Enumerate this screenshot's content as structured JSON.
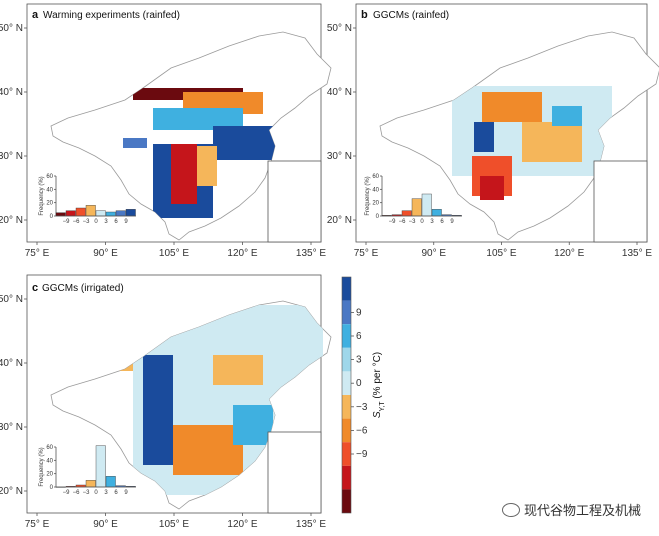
{
  "figure": {
    "panels": [
      {
        "letter": "a",
        "title": "Warming experiments (rainfed)"
      },
      {
        "letter": "b",
        "title": "GGCMs (rainfed)"
      },
      {
        "letter": "c",
        "title": "GGCMs (irrigated)"
      }
    ],
    "lon_labels": [
      "75° E",
      "90° E",
      "105° E",
      "120° E",
      "135° E"
    ],
    "lat_labels": [
      "50° N",
      "40° N",
      "30° N",
      "20° N"
    ],
    "colorbar": {
      "label": "S",
      "label_sub": "Y,T",
      "label_rest": " (% per °C)",
      "ticks": [
        "9",
        "6",
        "3",
        "0",
        "−3",
        "−6",
        "−9"
      ],
      "colors": [
        "#6b0a0f",
        "#c5151b",
        "#ef4f2a",
        "#f08a2a",
        "#f5b65a",
        "#cfeaf2",
        "#9fd7ea",
        "#3fb0e0",
        "#4a78c4",
        "#1a4b9c"
      ]
    },
    "watermark": "现代谷物工程及机械"
  },
  "chart_data": [
    {
      "type": "bar",
      "panel": "a",
      "title": "Warming experiments (rainfed)",
      "ylabel": "Frequency (%)",
      "ylim": [
        0,
        60
      ],
      "yticks": [
        "60",
        "40",
        "20",
        "0"
      ],
      "xticks": [
        "−9",
        "−6",
        "−3",
        "0",
        "3",
        "6",
        "9"
      ],
      "categories": [
        "< −9",
        "−9 to −6",
        "−6 to −3",
        "−3 to 0",
        "0 to 3",
        "3 to 6",
        "6 to 9",
        "> 9"
      ],
      "values": [
        5,
        8,
        12,
        16,
        8,
        6,
        8,
        10
      ],
      "colors": [
        "#6b0a0f",
        "#c5151b",
        "#ef4f2a",
        "#f5b65a",
        "#cfeaf2",
        "#3fb0e0",
        "#4a78c4",
        "#1a4b9c"
      ]
    },
    {
      "type": "bar",
      "panel": "b",
      "title": "GGCMs (rainfed)",
      "ylabel": "Frequency (%)",
      "ylim": [
        0,
        60
      ],
      "yticks": [
        "60",
        "40",
        "20",
        "0"
      ],
      "xticks": [
        "−9",
        "−6",
        "−3",
        "0",
        "3",
        "6",
        "9"
      ],
      "categories": [
        "< −9",
        "−9 to −6",
        "−6 to −3",
        "−3 to 0",
        "0 to 3",
        "3 to 6",
        "6 to 9",
        "> 9"
      ],
      "values": [
        1,
        2,
        8,
        26,
        33,
        10,
        2,
        1
      ],
      "colors": [
        "#6b0a0f",
        "#c5151b",
        "#ef4f2a",
        "#f5b65a",
        "#cfeaf2",
        "#3fb0e0",
        "#4a78c4",
        "#1a4b9c"
      ]
    },
    {
      "type": "bar",
      "panel": "c",
      "title": "GGCMs (irrigated)",
      "ylabel": "Frequency (%)",
      "ylim": [
        0,
        60
      ],
      "yticks": [
        "60",
        "40",
        "20",
        "0"
      ],
      "xticks": [
        "−9",
        "−6",
        "−3",
        "0",
        "3",
        "6",
        "9"
      ],
      "categories": [
        "< −9",
        "−9 to −6",
        "−6 to −3",
        "−3 to 0",
        "0 to 3",
        "3 to 6",
        "6 to 9",
        "> 9"
      ],
      "values": [
        0,
        1,
        3,
        10,
        62,
        16,
        2,
        1
      ],
      "colors": [
        "#6b0a0f",
        "#c5151b",
        "#ef4f2a",
        "#f5b65a",
        "#cfeaf2",
        "#3fb0e0",
        "#4a78c4",
        "#1a4b9c"
      ]
    }
  ]
}
